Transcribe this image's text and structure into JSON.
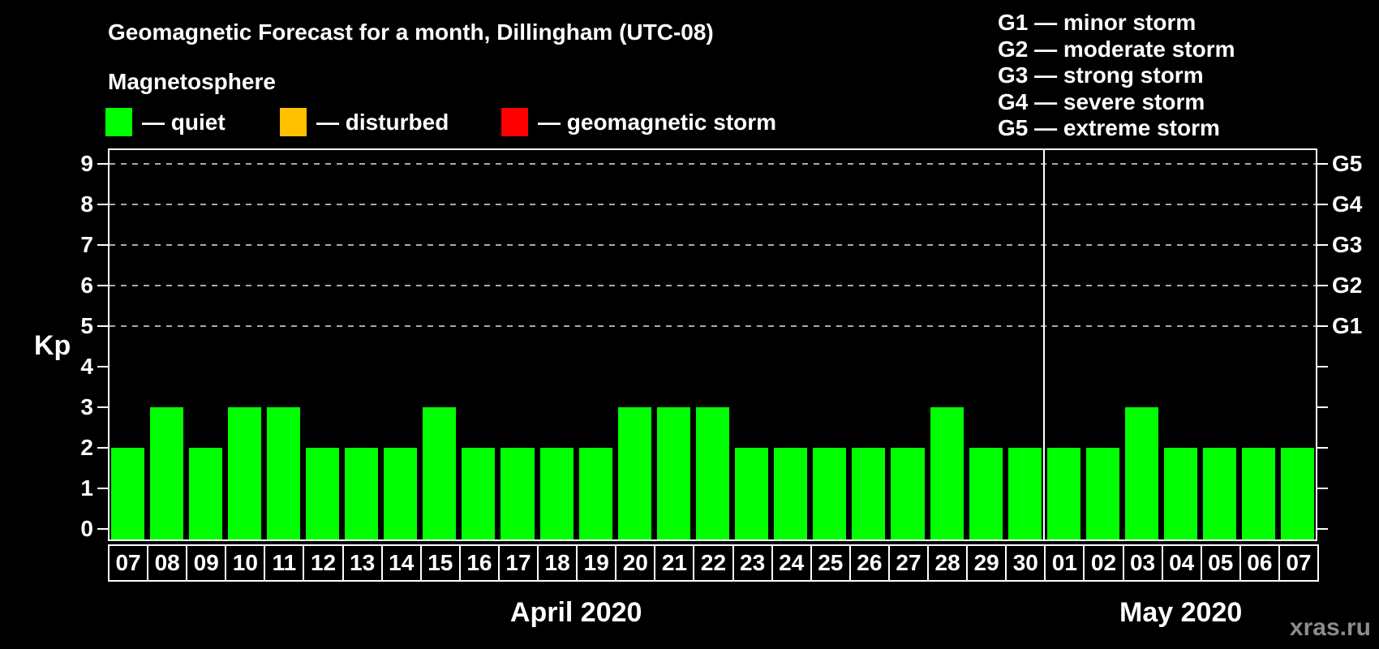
{
  "title": "Geomagnetic Forecast for a month, Dillingham (UTC-08)",
  "subtitle": "Magnetosphere",
  "legend": {
    "items": [
      {
        "key": "quiet",
        "label": "— quiet",
        "color": "#00ff00"
      },
      {
        "key": "disturbed",
        "label": "— disturbed",
        "color": "#ffc000"
      },
      {
        "key": "storm",
        "label": "— geomagnetic storm",
        "color": "#ff0000"
      }
    ]
  },
  "g_legend": [
    "G1 — minor storm",
    "G2 — moderate storm",
    "G3 — strong storm",
    "G4 — severe storm",
    "G5 — extreme storm"
  ],
  "watermark": "xras.ru",
  "chart_data": {
    "type": "bar",
    "ylabel": "Kp",
    "ylim": [
      -0.3,
      9.4
    ],
    "yticks": [
      0,
      1,
      2,
      3,
      4,
      5,
      6,
      7,
      8,
      9
    ],
    "dashed_gridlines_at_kp": [
      5,
      6,
      7,
      8,
      9
    ],
    "right_axis_labels": [
      {
        "kp": 5,
        "label": "G1"
      },
      {
        "kp": 6,
        "label": "G2"
      },
      {
        "kp": 7,
        "label": "G3"
      },
      {
        "kp": 8,
        "label": "G4"
      },
      {
        "kp": 9,
        "label": "G5"
      }
    ],
    "bar_color": "#00ff00",
    "bar_state": "quiet",
    "groups": [
      {
        "month_label": "April 2020",
        "days": [
          "07",
          "08",
          "09",
          "10",
          "11",
          "12",
          "13",
          "14",
          "15",
          "16",
          "17",
          "18",
          "19",
          "20",
          "21",
          "22",
          "23",
          "24",
          "25",
          "26",
          "27",
          "28",
          "29",
          "30"
        ],
        "values": [
          2,
          3,
          2,
          3,
          3,
          2,
          2,
          2,
          3,
          2,
          2,
          2,
          2,
          3,
          3,
          3,
          2,
          2,
          2,
          2,
          2,
          3,
          2,
          2
        ]
      },
      {
        "month_label": "May 2020",
        "days": [
          "01",
          "02",
          "03",
          "04",
          "05",
          "06",
          "07"
        ],
        "values": [
          2,
          2,
          3,
          2,
          2,
          2,
          2
        ]
      }
    ]
  },
  "colors": {
    "background": "#000000",
    "text": "#ffffff",
    "axis": "#ffffff",
    "gridline": "#aaaaaa",
    "watermark": "#8c8c8c"
  }
}
